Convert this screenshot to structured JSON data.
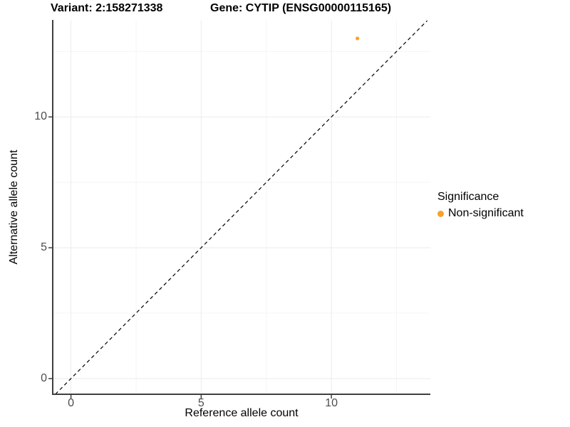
{
  "titles": {
    "variant": "Variant: 2:158271338",
    "gene": "Gene: CYTIP (ENSG00000115165)"
  },
  "legend": {
    "title": "Significance",
    "items": [
      {
        "label": "Non-significant",
        "color": "#F9A12B"
      }
    ]
  },
  "colors": {
    "point": "#F9A12B",
    "grid_major": "#EBEBEB",
    "grid_minor": "#F5F5F5",
    "axis": "#3F3F3F",
    "tick_label": "#4D4D4D",
    "reference_line": "#000000"
  },
  "chart_data": {
    "type": "scatter",
    "title": "Variant: 2:158271338 — Gene: CYTIP (ENSG00000115165)",
    "xlabel": "Reference allele count",
    "ylabel": "Alternative allele count",
    "x_ticks": [
      0,
      5,
      10
    ],
    "y_ticks": [
      0,
      5,
      10
    ],
    "x_minor_ticks": [
      2.5,
      7.5,
      12.5
    ],
    "y_minor_ticks": [
      2.5,
      7.5,
      12.5
    ],
    "xlim": [
      -0.7,
      13.8
    ],
    "ylim": [
      -0.6,
      13.68
    ],
    "grid": true,
    "legend_position": "right",
    "series": [
      {
        "name": "Non-significant",
        "color": "#F9A12B",
        "points": [
          {
            "x": 11,
            "y": 13
          }
        ]
      }
    ],
    "reference_line": {
      "type": "identity",
      "slope": 1,
      "intercept": 0,
      "style": "dashed",
      "color": "#000000"
    }
  }
}
